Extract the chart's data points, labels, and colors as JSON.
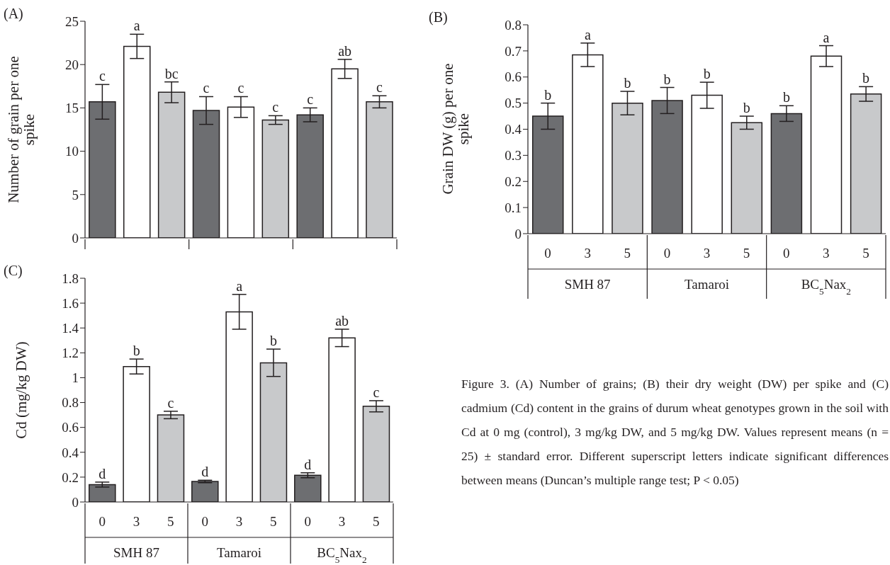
{
  "chart_data": [
    {
      "type": "bar",
      "title": "(A)",
      "ylabel": "Number of grain per one spike",
      "categories": [
        null,
        null,
        null,
        null,
        null,
        null,
        null,
        null,
        null
      ],
      "values": [
        15.7,
        22.1,
        16.8,
        14.7,
        15.1,
        13.6,
        14.2,
        19.5,
        15.7
      ],
      "errors": [
        2.0,
        1.4,
        1.2,
        1.6,
        1.2,
        0.5,
        0.8,
        1.1,
        0.7
      ],
      "colors": [
        "#6d6e71",
        "#ffffff",
        "#c8c9cb",
        "#6d6e71",
        "#ffffff",
        "#c8c9cb",
        "#6d6e71",
        "#ffffff",
        "#c8c9cb"
      ],
      "value_labels": [
        "c",
        "a",
        "bc",
        "c",
        "c",
        "c",
        "c",
        "ab",
        "c"
      ],
      "ylim": [
        0,
        25
      ],
      "yticks": [
        0,
        5,
        10,
        15,
        20,
        25
      ],
      "grid": false,
      "legend": false,
      "tick_labels": "y"
    },
    {
      "type": "bar",
      "title": "(B)",
      "ylabel": "Grain DW (g) per one spike",
      "categories": [
        "0",
        "3",
        "5",
        "0",
        "3",
        "5",
        "0",
        "3",
        "5"
      ],
      "values": [
        0.45,
        0.685,
        0.5,
        0.51,
        0.53,
        0.425,
        0.46,
        0.68,
        0.535
      ],
      "errors": [
        0.05,
        0.045,
        0.045,
        0.05,
        0.05,
        0.025,
        0.03,
        0.04,
        0.028
      ],
      "colors": [
        "#6d6e71",
        "#ffffff",
        "#c8c9cb",
        "#6d6e71",
        "#ffffff",
        "#c8c9cb",
        "#6d6e71",
        "#ffffff",
        "#c8c9cb"
      ],
      "value_labels": [
        "b",
        "a",
        "b",
        "b",
        "b",
        "b",
        "b",
        "a",
        "b"
      ],
      "annotations": [
        "SMH 87",
        "Tamaroi",
        "BC$_{5}$Nax$_{2}$"
      ],
      "ylim": [
        0,
        0.8
      ],
      "yticks": [
        0,
        0.1,
        0.2,
        0.3,
        0.4,
        0.5,
        0.6,
        0.7,
        0.8
      ],
      "grid": false,
      "legend": false
    },
    {
      "type": "bar",
      "title": "(C)",
      "ylabel": "Cd (mg/kg DW)",
      "categories": [
        "0",
        "3",
        "5",
        "0",
        "3",
        "5",
        "0",
        "3",
        "5"
      ],
      "values": [
        0.14,
        1.09,
        0.7,
        0.165,
        1.53,
        1.12,
        0.215,
        1.32,
        0.77
      ],
      "errors": [
        0.02,
        0.06,
        0.03,
        0.01,
        0.14,
        0.11,
        0.02,
        0.07,
        0.045
      ],
      "colors": [
        "#6d6e71",
        "#ffffff",
        "#c8c9cb",
        "#6d6e71",
        "#ffffff",
        "#c8c9cb",
        "#6d6e71",
        "#ffffff",
        "#c8c9cb"
      ],
      "value_labels": [
        "d",
        "b",
        "c",
        "d",
        "a",
        "b",
        "d",
        "ab",
        "c"
      ],
      "annotations": [
        "SMH 87",
        "Tamaroi",
        "BC$_{5}$Nax$_{2}$",
        "Figure 3. (A) Number of grains; (B) their dry weight (DW) per spike and (C) cadmium (Cd) content in the grains of durum wheat genotypes grown in the soil with Cd at 0 mg (control), 3 mg/kg DW, and 5 mg/kg DW. Values represent means (n = 25) ± standard error. Different superscript letters indicate significant differences between means (Duncan’s multiple range test; P < 0.05)"
      ],
      "ylim": [
        0,
        1.8
      ],
      "yticks": [
        0,
        0.2,
        0.4,
        0.6,
        0.8,
        1,
        1.2,
        1.4,
        1.6,
        1.8
      ],
      "grid": false,
      "legend": false
    }
  ]
}
